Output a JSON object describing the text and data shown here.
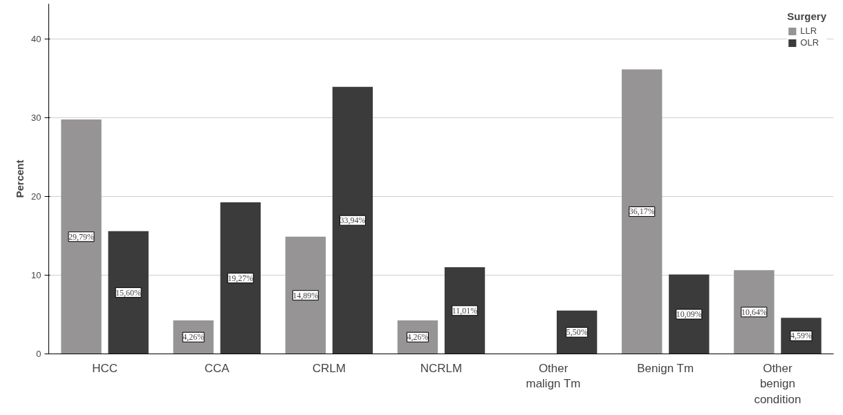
{
  "chart_data": {
    "type": "bar",
    "ylabel": "Percent",
    "legend_title": "Surgery",
    "categories": [
      "HCC",
      "CCA",
      "CRLM",
      "NCRLM",
      "Other malign Tm",
      "Benign Tm",
      "Other benign condition"
    ],
    "series": [
      {
        "name": "LLR",
        "color": "#969494",
        "values": [
          29.79,
          4.26,
          14.89,
          4.26,
          null,
          36.17,
          10.64
        ],
        "value_labels": [
          "29,79%",
          "4,26%",
          "14,89%",
          "4,26%",
          null,
          "36,17%",
          "10,64%"
        ]
      },
      {
        "name": "OLR",
        "color": "#3b3b3b",
        "values": [
          15.6,
          19.27,
          33.94,
          11.01,
          5.5,
          10.09,
          4.59
        ],
        "value_labels": [
          "15,60%",
          "19,27%",
          "33,94%",
          "11,01%",
          "5,50%",
          "10,09%",
          "4,59%"
        ]
      }
    ],
    "ylim": [
      0,
      44.5
    ],
    "yticks": [
      0,
      10,
      20,
      30,
      40
    ],
    "grid": "y",
    "legend": "top right"
  }
}
